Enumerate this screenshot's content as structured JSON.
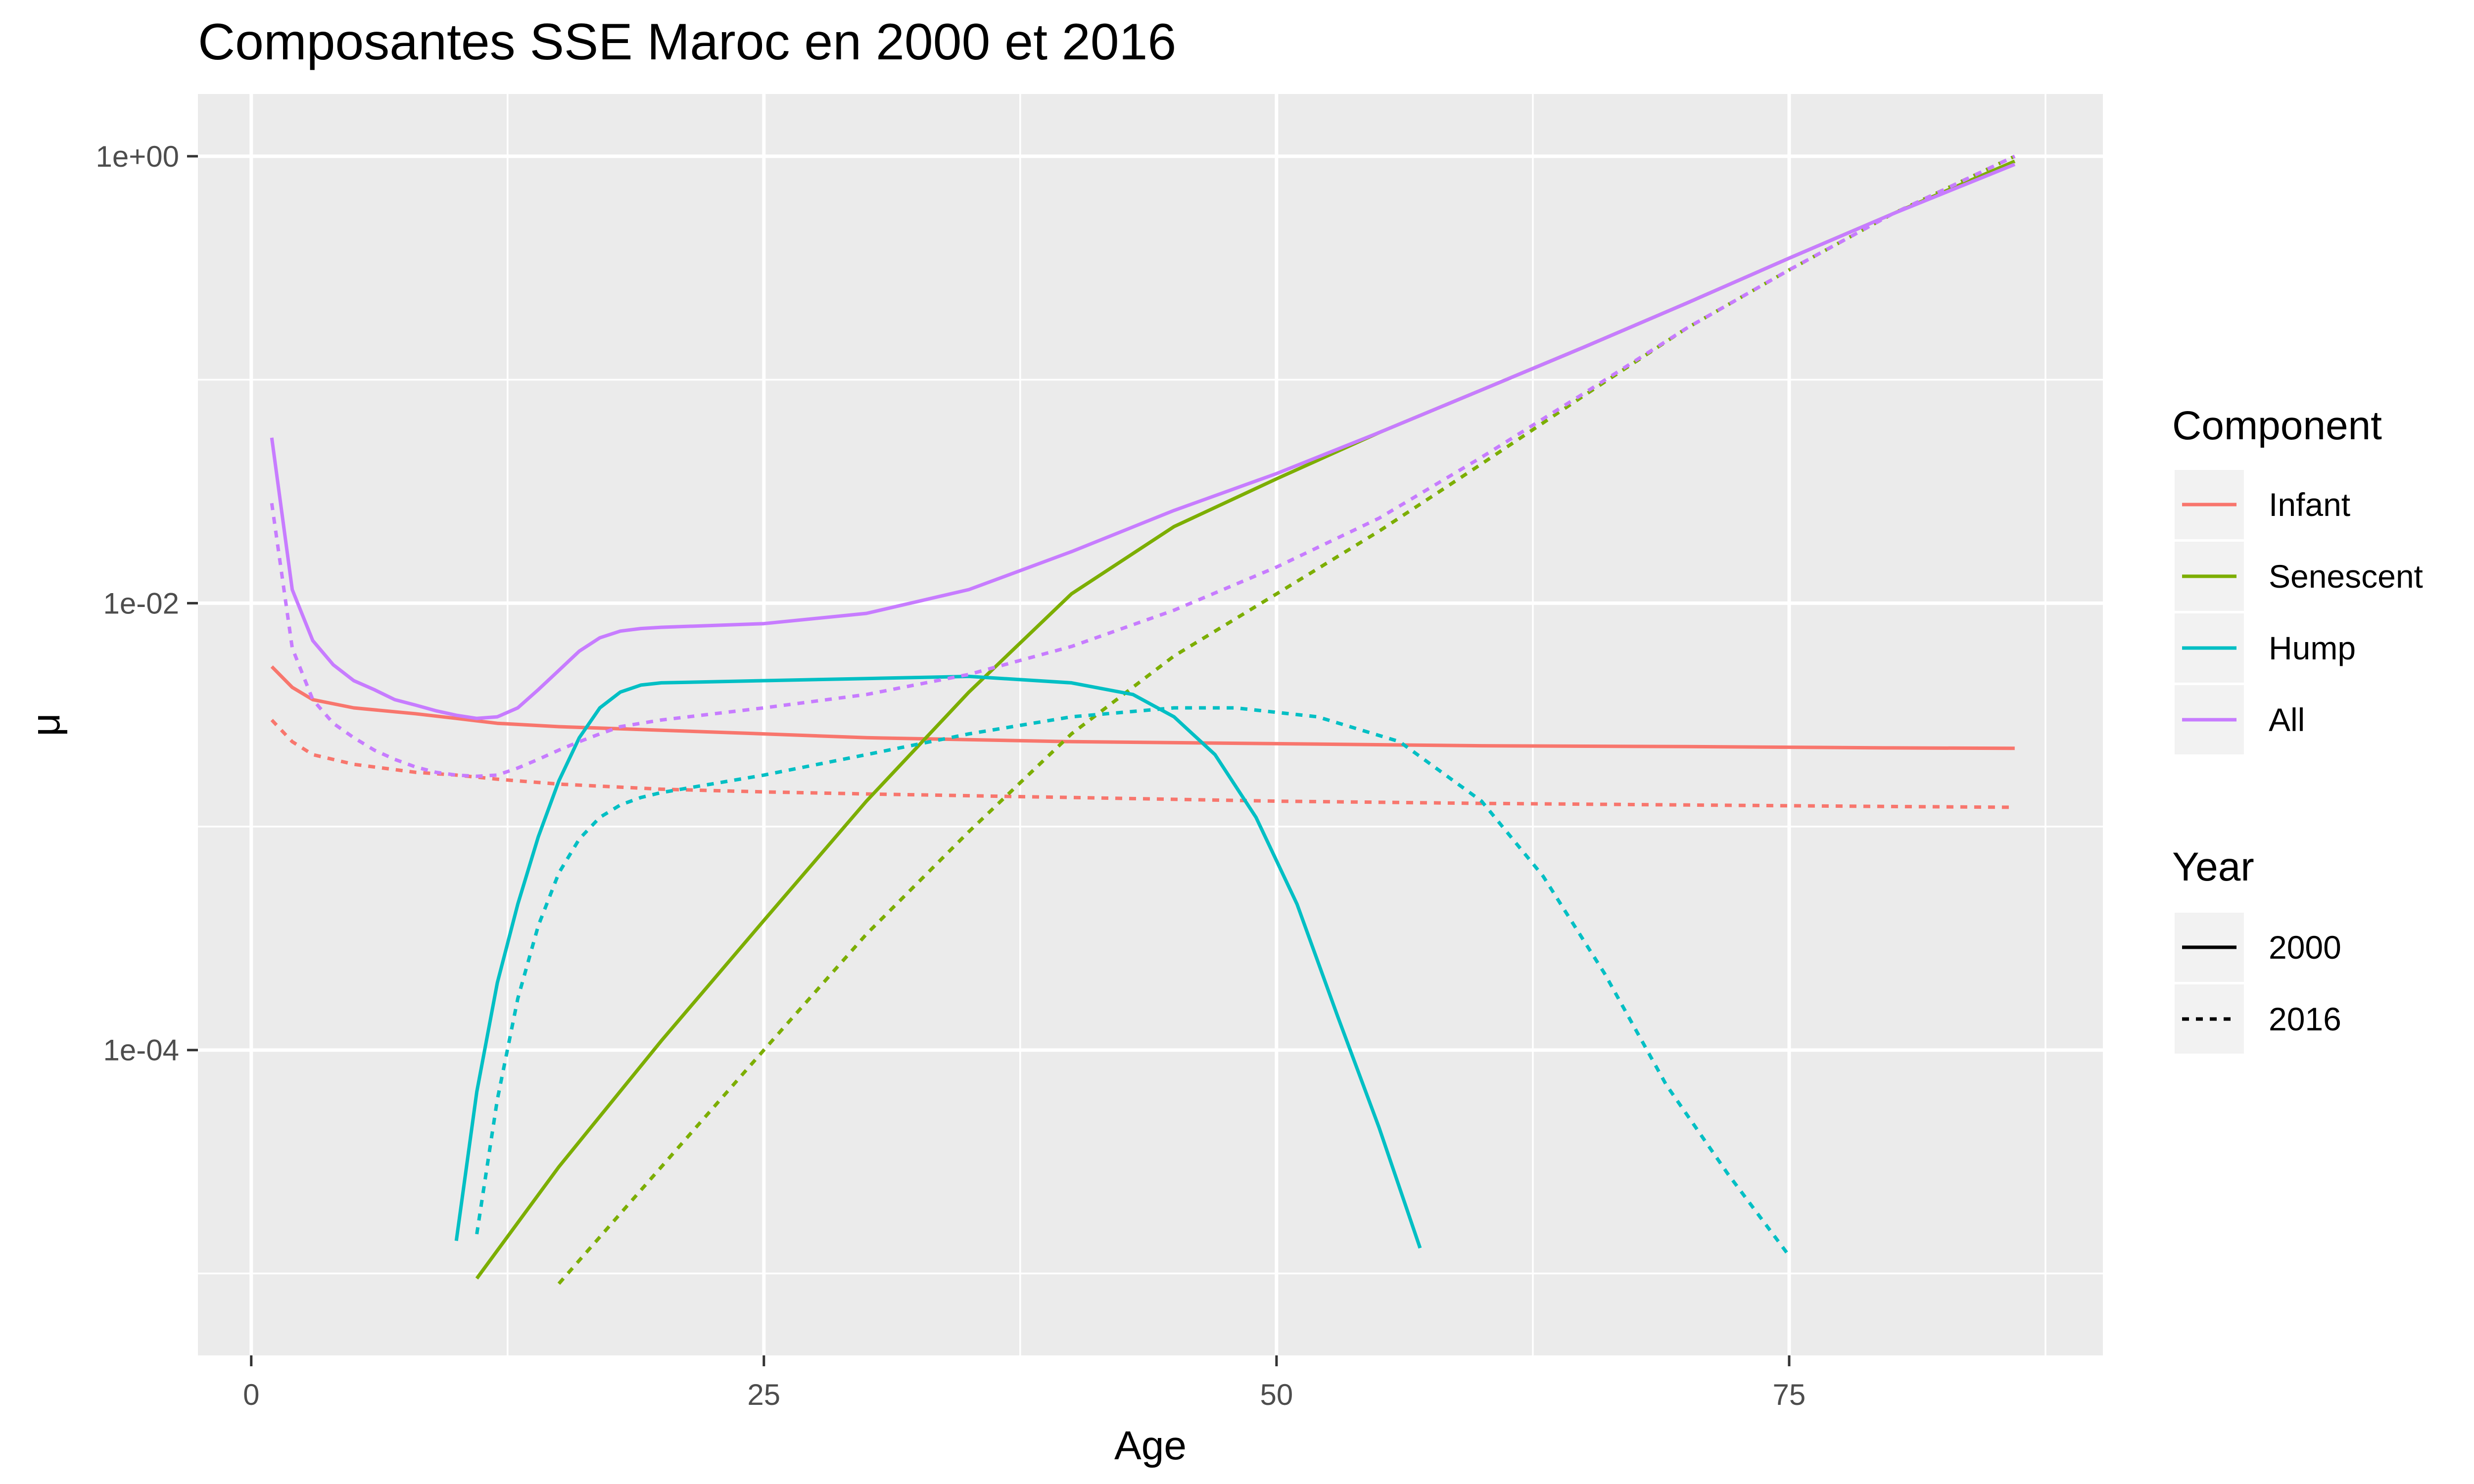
{
  "chart_data": {
    "type": "line",
    "title": "Composantes SSE Maroc en 2000 et 2016",
    "xlabel": "Age",
    "ylabel": "μ",
    "y_scale": "log10",
    "xlim": [
      -2.6,
      90.3
    ],
    "ylim": [
      4.3e-06,
      1.9
    ],
    "x_ticks": [
      0,
      25,
      50,
      75
    ],
    "x_tick_labels": [
      "0",
      "25",
      "50",
      "75"
    ],
    "y_ticks": [
      0.0001,
      0.01,
      1.0
    ],
    "y_tick_labels": [
      "1e-04",
      "1e-02",
      "1e+00"
    ],
    "grid": true,
    "legend_position": "right",
    "legend_component": {
      "title": "Component",
      "entries": [
        {
          "label": "Infant",
          "color": "#F8766D"
        },
        {
          "label": "Senescent",
          "color": "#7CAE00"
        },
        {
          "label": "Hump",
          "color": "#00BFC4"
        },
        {
          "label": "All",
          "color": "#C77CFF"
        }
      ]
    },
    "legend_year": {
      "title": "Year",
      "entries": [
        {
          "label": "2000",
          "linetype": "solid"
        },
        {
          "label": "2016",
          "linetype": "dashed"
        }
      ]
    },
    "colors": {
      "Infant": "#F8766D",
      "Senescent": "#7CAE00",
      "Hump": "#00BFC4",
      "All": "#C77CFF",
      "panel": "#EBEBEB",
      "grid": "#FFFFFF"
    },
    "series": [
      {
        "component": "Infant",
        "year": "2000",
        "x": [
          1,
          2,
          3,
          5,
          8,
          10,
          12,
          15,
          20,
          25,
          30,
          40,
          50,
          60,
          70,
          80,
          86
        ],
        "y": [
          0.0052,
          0.0042,
          0.0037,
          0.0034,
          0.0032,
          0.00305,
          0.0029,
          0.0028,
          0.0027,
          0.0026,
          0.0025,
          0.0024,
          0.00235,
          0.0023,
          0.00228,
          0.00225,
          0.00224
        ]
      },
      {
        "component": "Infant",
        "year": "2016",
        "x": [
          1,
          2,
          3,
          5,
          8,
          10,
          12,
          15,
          20,
          25,
          30,
          40,
          50,
          60,
          70,
          80,
          86
        ],
        "y": [
          0.003,
          0.0024,
          0.0021,
          0.0019,
          0.00175,
          0.0017,
          0.00163,
          0.00155,
          0.00147,
          0.00143,
          0.0014,
          0.00135,
          0.0013,
          0.00127,
          0.00125,
          0.00123,
          0.00122
        ]
      },
      {
        "component": "Senescent",
        "year": "2000",
        "x": [
          11,
          15,
          20,
          25,
          30,
          35,
          40,
          45,
          50,
          55,
          60,
          65,
          70,
          75,
          80,
          86
        ],
        "y": [
          9.5e-06,
          3e-05,
          0.00011,
          0.00038,
          0.0013,
          0.004,
          0.011,
          0.022,
          0.036,
          0.058,
          0.09,
          0.14,
          0.22,
          0.35,
          0.55,
          0.95
        ]
      },
      {
        "component": "Senescent",
        "year": "2016",
        "x": [
          15,
          20,
          25,
          30,
          35,
          40,
          45,
          50,
          55,
          60,
          65,
          70,
          75,
          80,
          86
        ],
        "y": [
          9e-06,
          3e-05,
          0.0001,
          0.00033,
          0.00095,
          0.0026,
          0.0058,
          0.011,
          0.021,
          0.042,
          0.085,
          0.17,
          0.31,
          0.55,
          1.0
        ]
      },
      {
        "component": "Hump",
        "year": "2000",
        "x": [
          10,
          11,
          12,
          13,
          14,
          15,
          16,
          17,
          18,
          19,
          20,
          25,
          30,
          35,
          40,
          43,
          45,
          47,
          49,
          51,
          53,
          55,
          57
        ],
        "y": [
          1.4e-05,
          6.5e-05,
          0.0002,
          0.00045,
          0.0009,
          0.0016,
          0.0025,
          0.0034,
          0.004,
          0.0043,
          0.0044,
          0.0045,
          0.0046,
          0.0047,
          0.0044,
          0.0039,
          0.0031,
          0.0021,
          0.0011,
          0.00045,
          0.00014,
          4.5e-05,
          1.3e-05
        ]
      },
      {
        "component": "Hump",
        "year": "2016",
        "x": [
          11,
          12,
          13,
          14,
          15,
          16,
          17,
          18,
          19,
          20,
          25,
          30,
          35,
          40,
          45,
          48,
          52,
          56,
          60,
          63,
          66,
          69,
          72,
          75
        ],
        "y": [
          1.5e-05,
          6e-05,
          0.00017,
          0.00036,
          0.00062,
          0.00088,
          0.0011,
          0.00125,
          0.00135,
          0.00142,
          0.0017,
          0.0021,
          0.0026,
          0.0031,
          0.0034,
          0.0034,
          0.0031,
          0.0024,
          0.0013,
          0.0006,
          0.00022,
          7e-05,
          2.8e-05,
          1.2e-05
        ]
      },
      {
        "component": "All",
        "year": "2000",
        "x": [
          1,
          2,
          3,
          4,
          5,
          6,
          7,
          8,
          9,
          10,
          11,
          12,
          13,
          14,
          15,
          16,
          17,
          18,
          19,
          20,
          25,
          30,
          35,
          40,
          45,
          50,
          55,
          60,
          65,
          70,
          75,
          80,
          86
        ],
        "y": [
          0.055,
          0.0115,
          0.0068,
          0.0053,
          0.0045,
          0.0041,
          0.0037,
          0.0035,
          0.0033,
          0.00315,
          0.00305,
          0.0031,
          0.0034,
          0.0041,
          0.005,
          0.0061,
          0.007,
          0.0075,
          0.0077,
          0.0078,
          0.0081,
          0.009,
          0.0115,
          0.017,
          0.026,
          0.038,
          0.058,
          0.09,
          0.14,
          0.22,
          0.35,
          0.55,
          0.92
        ]
      },
      {
        "component": "All",
        "year": "2016",
        "x": [
          1,
          2,
          3,
          4,
          5,
          6,
          7,
          8,
          9,
          10,
          11,
          12,
          13,
          14,
          15,
          16,
          17,
          18,
          19,
          20,
          25,
          30,
          35,
          40,
          45,
          50,
          55,
          60,
          65,
          70,
          75,
          80,
          86
        ],
        "y": [
          0.028,
          0.0063,
          0.0037,
          0.0029,
          0.0025,
          0.0022,
          0.002,
          0.00185,
          0.00175,
          0.0017,
          0.00168,
          0.0017,
          0.00183,
          0.002,
          0.0022,
          0.0024,
          0.0026,
          0.0028,
          0.0029,
          0.003,
          0.0034,
          0.0039,
          0.0048,
          0.0064,
          0.0093,
          0.0145,
          0.024,
          0.045,
          0.087,
          0.17,
          0.31,
          0.55,
          1.0
        ]
      }
    ]
  }
}
